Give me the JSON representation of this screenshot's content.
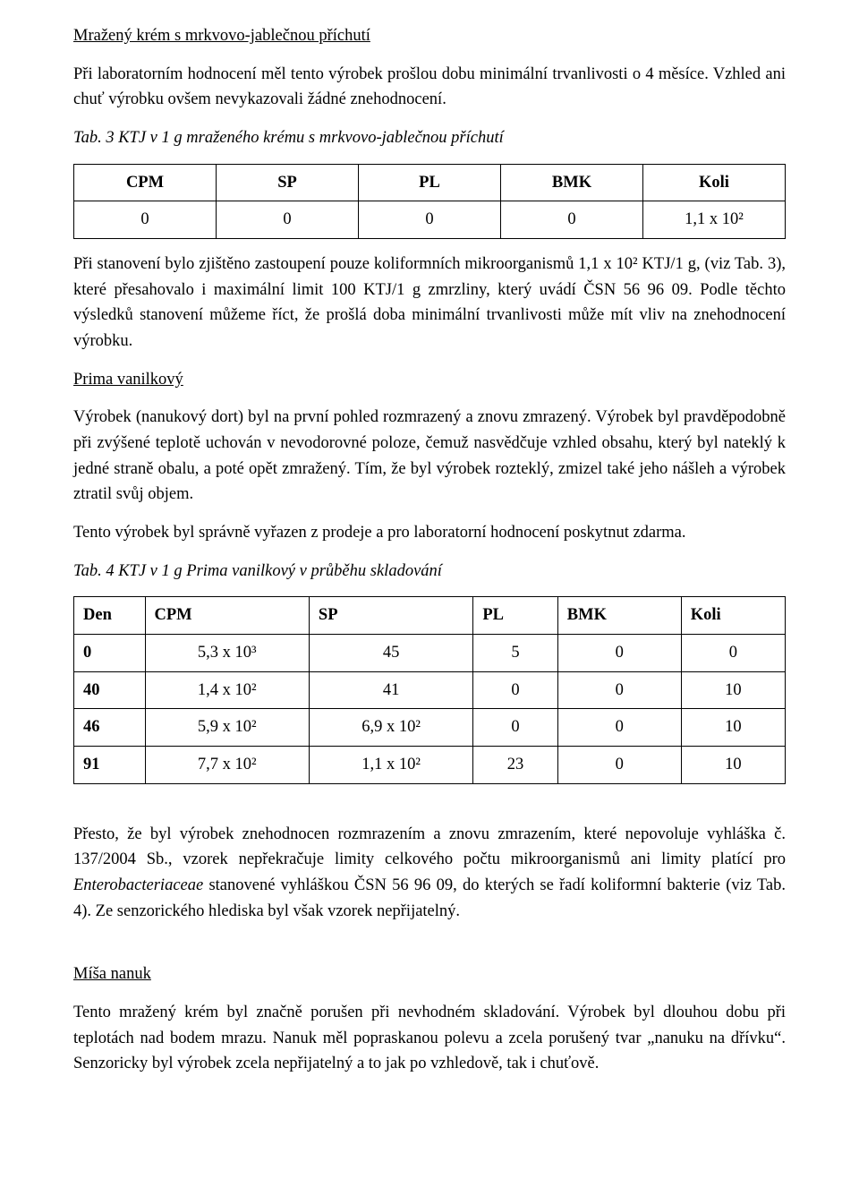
{
  "section1": {
    "title": "Mražený krém s mrkvovo-jablečnou příchutí",
    "p1": "Při laboratorním hodnocení měl tento výrobek prošlou dobu minimální trvanlivosti o 4 měsíce. Vzhled ani chuť výrobku ovšem nevykazovali žádné znehodnocení.",
    "table_caption": "Tab. 3 KTJ v 1 g mraženého krému s mrkvovo-jablečnou příchutí",
    "table": {
      "headers": [
        "CPM",
        "SP",
        "PL",
        "BMK",
        "Koli"
      ],
      "row": [
        "0",
        "0",
        "0",
        "0",
        "1,1 x 10²"
      ]
    },
    "p2": "Při stanovení bylo zjištěno zastoupení pouze koliformních mikroorganismů 1,1 x 10² KTJ/1 g, (viz Tab. 3), které přesahovalo i maximální limit 100 KTJ/1 g zmrzliny, který uvádí ČSN 56 96 09. Podle těchto výsledků stanovení můžeme říct, že prošlá doba minimální trvanlivosti může mít vliv na znehodnocení výrobku."
  },
  "section2": {
    "title": "Prima vanilkový",
    "p1": "Výrobek (nanukový dort) byl na první pohled rozmrazený a znovu zmrazený. Výrobek byl pravděpodobně při zvýšené teplotě uchován v nevodorovné poloze, čemuž nasvědčuje vzhled obsahu, který byl nateklý k jedné straně obalu, a poté opět zmražený. Tím, že byl výrobek rozteklý, zmizel také jeho nášleh a výrobek ztratil svůj objem.",
    "p2": "Tento výrobek byl správně vyřazen z prodeje a pro laboratorní hodnocení poskytnut zdarma.",
    "table_caption": "Tab. 4 KTJ v 1 g Prima vanilkový v průběhu skladování",
    "table": {
      "headers": [
        "Den",
        "CPM",
        "SP",
        "PL",
        "BMK",
        "Koli"
      ],
      "rows": [
        [
          "0",
          "5,3 x 10³",
          "45",
          "5",
          "0",
          "0"
        ],
        [
          "40",
          "1,4 x 10²",
          "41",
          "0",
          "0",
          "10"
        ],
        [
          "46",
          "5,9 x 10²",
          "6,9 x 10²",
          "0",
          "0",
          "10"
        ],
        [
          "91",
          "7,7 x 10²",
          "1,1 x 10²",
          "23",
          "0",
          "10"
        ]
      ]
    },
    "p3_a": "Přesto, že byl výrobek znehodnocen rozmrazením a znovu zmrazením, které nepovoluje vyhláška č. 137/2004 Sb., vzorek nepřekračuje limity celkového počtu mikroorganismů ani limity platící pro ",
    "p3_i": "Enterobacteriaceae",
    "p3_b": " stanovené vyhláškou ČSN 56 96 09, do kterých se řadí koliformní bakterie (viz Tab. 4). Ze senzorického hlediska byl však vzorek nepřijatelný."
  },
  "section3": {
    "title": "Míša nanuk",
    "p1": "Tento mražený krém byl značně porušen při nevhodném skladování. Výrobek byl dlouhou dobu při teplotách nad bodem mrazu. Nanuk měl popraskanou polevu a zcela porušený tvar „nanuku na dřívku“. Senzoricky byl výrobek zcela nepřijatelný a to jak po vzhledově, tak i chuťově."
  }
}
